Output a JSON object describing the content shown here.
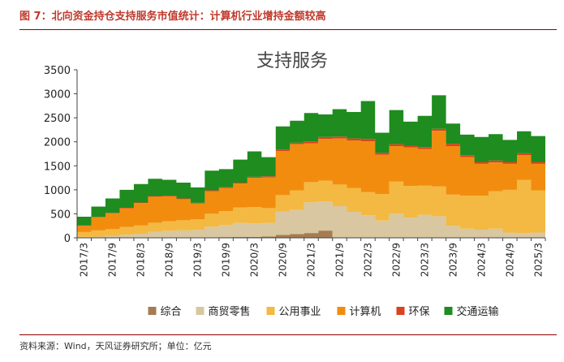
{
  "figure": {
    "title": "图 7：北向资金持仓支持服务市值统计：计算机行业增持金额较高",
    "source": "资料来源：Wind，天风证券研究所；单位：亿元"
  },
  "chart_data": {
    "type": "area",
    "stacked": true,
    "title": "支持服务",
    "xlabel": "",
    "ylabel": "",
    "ylim": [
      0,
      3500
    ],
    "yticks": [
      0,
      500,
      1000,
      1500,
      2000,
      2500,
      3000,
      3500
    ],
    "grid": false,
    "legend_position": "bottom",
    "x": [
      "2017/3",
      "2017/6",
      "2017/9",
      "2017/12",
      "2018/3",
      "2018/6",
      "2018/9",
      "2018/12",
      "2019/3",
      "2019/6",
      "2019/9",
      "2019/12",
      "2020/3",
      "2020/6",
      "2020/9",
      "2020/12",
      "2021/3",
      "2021/6",
      "2021/9",
      "2021/12",
      "2022/3",
      "2022/6",
      "2022/9",
      "2022/12",
      "2023/3",
      "2023/6",
      "2023/9",
      "2023/12",
      "2024/3",
      "2024/6",
      "2024/9",
      "2024/12",
      "2025/3"
    ],
    "series": [
      {
        "name": "综合",
        "color": "#a67c52",
        "values": [
          5,
          5,
          5,
          5,
          5,
          5,
          5,
          5,
          5,
          10,
          15,
          20,
          20,
          30,
          60,
          80,
          100,
          150,
          0,
          0,
          0,
          0,
          0,
          0,
          0,
          0,
          0,
          0,
          0,
          0,
          0,
          0,
          0
        ]
      },
      {
        "name": "商贸零售",
        "color": "#d8c7a0",
        "values": [
          15,
          20,
          35,
          60,
          80,
          120,
          140,
          150,
          160,
          220,
          250,
          290,
          280,
          280,
          490,
          500,
          640,
          610,
          660,
          540,
          470,
          360,
          500,
          420,
          480,
          450,
          250,
          190,
          170,
          190,
          110,
          100,
          110
        ]
      },
      {
        "name": "公用事业",
        "color": "#f4b942",
        "values": [
          100,
          130,
          140,
          160,
          170,
          190,
          200,
          210,
          220,
          270,
          290,
          320,
          340,
          310,
          340,
          410,
          420,
          430,
          450,
          500,
          480,
          550,
          670,
          660,
          610,
          620,
          650,
          690,
          710,
          780,
          890,
          1110,
          880
        ]
      },
      {
        "name": "计算机",
        "color": "#f28c0f",
        "values": [
          130,
          270,
          330,
          390,
          470,
          540,
          520,
          440,
          330,
          470,
          480,
          500,
          610,
          640,
          920,
          960,
          810,
          870,
          960,
          990,
          1060,
          820,
          740,
          800,
          760,
          1160,
          1010,
          800,
          660,
          600,
          540,
          510,
          550
        ]
      },
      {
        "name": "环保",
        "color": "#d9441f",
        "values": [
          5,
          10,
          10,
          10,
          10,
          15,
          15,
          15,
          15,
          20,
          20,
          20,
          20,
          20,
          30,
          30,
          40,
          40,
          40,
          40,
          50,
          40,
          40,
          40,
          40,
          40,
          50,
          40,
          40,
          40,
          40,
          40,
          40
        ]
      },
      {
        "name": "交通运输",
        "color": "#1e8c1e",
        "values": [
          185,
          215,
          300,
          375,
          385,
          360,
          330,
          330,
          320,
          410,
          375,
          480,
          530,
          400,
          480,
          460,
          590,
          470,
          570,
          550,
          790,
          420,
          710,
          500,
          650,
          700,
          420,
          430,
          520,
          550,
          460,
          460,
          540
        ]
      }
    ]
  }
}
